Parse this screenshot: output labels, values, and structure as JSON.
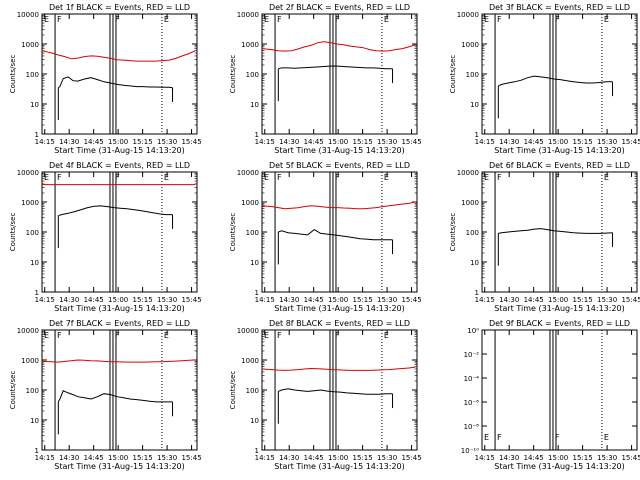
{
  "figure": {
    "colors": {
      "events": "#000000",
      "lld": "#dd0000",
      "background": "#ffffff"
    },
    "xlabel": "Start Time (31-Aug-15 14:13:20)",
    "ylabel": "Counts/sec",
    "time_ticks": [
      "14:15",
      "14:30",
      "14:45",
      "15:00",
      "15:15",
      "15:30",
      "15:45"
    ],
    "y_ticks": [
      "1",
      "10",
      "100",
      "1000",
      "10000"
    ],
    "y_ticks_small": [
      "10⁻¹⁰",
      "10⁻⁸",
      "10⁻⁶",
      "10⁻⁴",
      "10⁻²",
      "10⁰"
    ],
    "flag_labels": [
      "E",
      "F",
      "F",
      "E"
    ]
  },
  "chart_data": [
    {
      "type": "line",
      "title": "Det 1f BLACK = Events, RED = LLD",
      "xlabel": "Start Time (31-Aug-15 14:13:20)",
      "ylabel": "Counts/sec",
      "xlim_minutes": [
        0,
        95
      ],
      "ylim": [
        1,
        10000
      ],
      "yscale": "log",
      "series": [
        {
          "name": "Events",
          "color": "#000000",
          "x": [
            10,
            11,
            13,
            16,
            19,
            22,
            26,
            30,
            34,
            38,
            42,
            46,
            50,
            54,
            58,
            62,
            66,
            70,
            74,
            78,
            80
          ],
          "y": [
            35,
            38,
            70,
            80,
            60,
            58,
            68,
            75,
            65,
            55,
            50,
            45,
            42,
            40,
            38,
            38,
            37,
            37,
            36,
            36,
            35
          ]
        },
        {
          "name": "LLD",
          "color": "#dd0000",
          "x": [
            0,
            6,
            10,
            14,
            18,
            22,
            26,
            30,
            34,
            38,
            42,
            46,
            50,
            54,
            58,
            62,
            66,
            70,
            74,
            78,
            82,
            86,
            90,
            94
          ],
          "y": [
            600,
            500,
            430,
            380,
            320,
            340,
            380,
            400,
            390,
            360,
            330,
            300,
            290,
            280,
            270,
            270,
            270,
            270,
            280,
            290,
            330,
            400,
            480,
            600
          ]
        }
      ],
      "flags": [
        {
          "label": "E",
          "minute": 0,
          "line": "solid"
        },
        {
          "label": "F",
          "minute": 8,
          "line": "solid"
        },
        {
          "label": "F",
          "minute": 43.5,
          "line": "solid"
        },
        {
          "label": "E",
          "minute": 73.5,
          "line": "dotted"
        }
      ]
    },
    {
      "type": "line",
      "title": "Det 2f BLACK = Events, RED = LLD",
      "xlabel": "Start Time (31-Aug-15 14:13:20)",
      "ylabel": "Counts/sec",
      "xlim_minutes": [
        0,
        95
      ],
      "ylim": [
        1,
        10000
      ],
      "yscale": "log",
      "series": [
        {
          "name": "Events",
          "color": "#000000",
          "x": [
            10,
            12,
            16,
            20,
            24,
            28,
            32,
            36,
            40,
            44,
            48,
            52,
            56,
            60,
            64,
            68,
            72,
            76,
            80
          ],
          "y": [
            150,
            160,
            160,
            155,
            160,
            165,
            170,
            175,
            180,
            185,
            180,
            175,
            170,
            165,
            160,
            160,
            155,
            150,
            150
          ]
        },
        {
          "name": "LLD",
          "color": "#dd0000",
          "x": [
            0,
            6,
            10,
            14,
            18,
            22,
            26,
            30,
            34,
            38,
            42,
            46,
            50,
            54,
            58,
            62,
            66,
            70,
            74,
            78,
            82,
            86,
            90,
            94
          ],
          "y": [
            700,
            650,
            600,
            580,
            600,
            680,
            800,
            900,
            1100,
            1200,
            1100,
            1000,
            950,
            850,
            800,
            750,
            650,
            600,
            580,
            600,
            650,
            700,
            800,
            950
          ]
        }
      ],
      "flags": [
        {
          "label": "E",
          "minute": 0,
          "line": "solid"
        },
        {
          "label": "F",
          "minute": 8,
          "line": "solid"
        },
        {
          "label": "F",
          "minute": 43.5,
          "line": "solid"
        },
        {
          "label": "E",
          "minute": 73.5,
          "line": "dotted"
        }
      ]
    },
    {
      "type": "line",
      "title": "Det 3f BLACK = Events, RED = LLD",
      "xlabel": "Start Time (31-Aug-15 14:13:20)",
      "ylabel": "Counts/sec",
      "xlim_minutes": [
        0,
        95
      ],
      "ylim": [
        1,
        10000
      ],
      "yscale": "log",
      "series": [
        {
          "name": "Events",
          "color": "#000000",
          "x": [
            10,
            12,
            16,
            20,
            24,
            28,
            32,
            36,
            40,
            44,
            48,
            52,
            56,
            60,
            64,
            68,
            72,
            76,
            80
          ],
          "y": [
            40,
            45,
            50,
            55,
            62,
            75,
            85,
            80,
            75,
            68,
            65,
            60,
            55,
            52,
            50,
            50,
            52,
            55,
            55
          ]
        }
      ],
      "flags": [
        {
          "label": "E",
          "minute": 0,
          "line": "solid"
        },
        {
          "label": "F",
          "minute": 8,
          "line": "solid"
        },
        {
          "label": "F",
          "minute": 43.5,
          "line": "solid"
        },
        {
          "label": "E",
          "minute": 73.5,
          "line": "dotted"
        }
      ]
    },
    {
      "type": "line",
      "title": "Det 4f BLACK = Events, RED = LLD",
      "xlabel": "Start Time (31-Aug-15 14:13:20)",
      "ylabel": "Counts/sec",
      "xlim_minutes": [
        0,
        95
      ],
      "ylim": [
        1,
        10000
      ],
      "yscale": "log",
      "series": [
        {
          "name": "Events",
          "color": "#000000",
          "x": [
            10,
            12,
            16,
            20,
            24,
            28,
            32,
            36,
            40,
            44,
            48,
            52,
            56,
            60,
            64,
            68,
            72,
            76,
            80
          ],
          "y": [
            350,
            380,
            420,
            480,
            560,
            650,
            720,
            740,
            700,
            650,
            620,
            600,
            560,
            520,
            480,
            440,
            400,
            380,
            380
          ]
        },
        {
          "name": "LLD",
          "color": "#dd0000",
          "x": [
            0,
            10,
            20,
            30,
            40,
            50,
            60,
            70,
            80,
            90,
            94
          ],
          "y": [
            3800,
            3800,
            3800,
            3800,
            3800,
            3800,
            3800,
            3800,
            3800,
            3800,
            3800
          ]
        }
      ],
      "flags": [
        {
          "label": "E",
          "minute": 0,
          "line": "solid"
        },
        {
          "label": "F",
          "minute": 8,
          "line": "solid"
        },
        {
          "label": "F",
          "minute": 43.5,
          "line": "solid"
        },
        {
          "label": "E",
          "minute": 73.5,
          "line": "dotted"
        }
      ]
    },
    {
      "type": "line",
      "title": "Det 5f BLACK = Events, RED = LLD",
      "xlabel": "Start Time (31-Aug-15 14:13:20)",
      "ylabel": "Counts/sec",
      "xlim_minutes": [
        0,
        95
      ],
      "ylim": [
        1,
        10000
      ],
      "yscale": "log",
      "series": [
        {
          "name": "Events",
          "color": "#000000",
          "x": [
            10,
            12,
            16,
            20,
            24,
            28,
            32,
            36,
            40,
            44,
            48,
            52,
            56,
            60,
            64,
            68,
            72,
            76,
            80
          ],
          "y": [
            100,
            110,
            95,
            90,
            85,
            80,
            120,
            90,
            85,
            80,
            75,
            70,
            65,
            60,
            58,
            55,
            55,
            55,
            55
          ]
        },
        {
          "name": "LLD",
          "color": "#dd0000",
          "x": [
            0,
            6,
            10,
            14,
            18,
            22,
            26,
            30,
            34,
            38,
            42,
            46,
            50,
            54,
            58,
            62,
            66,
            70,
            74,
            78,
            82,
            86,
            90,
            94
          ],
          "y": [
            750,
            700,
            650,
            600,
            620,
            640,
            700,
            750,
            720,
            680,
            650,
            650,
            630,
            620,
            600,
            600,
            620,
            650,
            700,
            750,
            800,
            850,
            900,
            1000
          ]
        }
      ],
      "flags": [
        {
          "label": "E",
          "minute": 0,
          "line": "solid"
        },
        {
          "label": "F",
          "minute": 8,
          "line": "solid"
        },
        {
          "label": "F",
          "minute": 43.5,
          "line": "solid"
        },
        {
          "label": "E",
          "minute": 73.5,
          "line": "dotted"
        }
      ]
    },
    {
      "type": "line",
      "title": "Det 6f BLACK = Events, RED = LLD",
      "xlabel": "Start Time (31-Aug-15 14:13:20)",
      "ylabel": "Counts/sec",
      "xlim_minutes": [
        0,
        95
      ],
      "ylim": [
        1,
        10000
      ],
      "yscale": "log",
      "series": [
        {
          "name": "Events",
          "color": "#000000",
          "x": [
            10,
            12,
            16,
            20,
            24,
            28,
            32,
            36,
            40,
            44,
            48,
            52,
            56,
            60,
            64,
            68,
            72,
            76,
            80
          ],
          "y": [
            90,
            95,
            100,
            105,
            110,
            115,
            125,
            130,
            120,
            110,
            105,
            100,
            95,
            92,
            90,
            90,
            90,
            92,
            95
          ]
        }
      ],
      "flags": [
        {
          "label": "E",
          "minute": 0,
          "line": "solid"
        },
        {
          "label": "F",
          "minute": 8,
          "line": "solid"
        },
        {
          "label": "F",
          "minute": 43.5,
          "line": "solid"
        },
        {
          "label": "E",
          "minute": 73.5,
          "line": "dotted"
        }
      ]
    },
    {
      "type": "line",
      "title": "Det 7f BLACK = Events, RED = LLD",
      "xlabel": "Start Time (31-Aug-15 14:13:20)",
      "ylabel": "Counts/sec",
      "xlim_minutes": [
        0,
        95
      ],
      "ylim": [
        1,
        10000
      ],
      "yscale": "log",
      "series": [
        {
          "name": "Events",
          "color": "#000000",
          "x": [
            10,
            11,
            13,
            16,
            19,
            22,
            26,
            30,
            34,
            38,
            42,
            46,
            50,
            54,
            58,
            62,
            66,
            70,
            74,
            78,
            80
          ],
          "y": [
            40,
            50,
            95,
            80,
            70,
            60,
            55,
            50,
            60,
            75,
            70,
            60,
            55,
            50,
            48,
            45,
            42,
            40,
            40,
            40,
            40
          ]
        },
        {
          "name": "LLD",
          "color": "#dd0000",
          "x": [
            0,
            6,
            10,
            14,
            18,
            22,
            26,
            30,
            34,
            38,
            42,
            46,
            50,
            54,
            58,
            62,
            66,
            70,
            74,
            78,
            82,
            86,
            90,
            94
          ],
          "y": [
            900,
            880,
            850,
            900,
            950,
            1000,
            980,
            950,
            930,
            900,
            880,
            870,
            860,
            850,
            850,
            850,
            860,
            870,
            880,
            900,
            920,
            950,
            980,
            1000
          ]
        }
      ],
      "flags": [
        {
          "label": "E",
          "minute": 0,
          "line": "solid"
        },
        {
          "label": "F",
          "minute": 8,
          "line": "solid"
        },
        {
          "label": "F",
          "minute": 43.5,
          "line": "solid"
        },
        {
          "label": "E",
          "minute": 73.5,
          "line": "dotted"
        }
      ]
    },
    {
      "type": "line",
      "title": "Det 8f BLACK = Events, RED = LLD",
      "xlabel": "Start Time (31-Aug-15 14:13:20)",
      "ylabel": "Counts/sec",
      "xlim_minutes": [
        0,
        95
      ],
      "ylim": [
        1,
        10000
      ],
      "yscale": "log",
      "series": [
        {
          "name": "Events",
          "color": "#000000",
          "x": [
            10,
            12,
            16,
            20,
            24,
            28,
            32,
            36,
            40,
            44,
            48,
            52,
            56,
            60,
            64,
            68,
            72,
            76,
            80
          ],
          "y": [
            90,
            100,
            110,
            100,
            95,
            90,
            95,
            100,
            92,
            88,
            85,
            80,
            78,
            75,
            72,
            72,
            72,
            75,
            75
          ]
        },
        {
          "name": "LLD",
          "color": "#dd0000",
          "x": [
            0,
            6,
            10,
            14,
            18,
            22,
            26,
            30,
            34,
            38,
            42,
            46,
            50,
            54,
            58,
            62,
            66,
            70,
            74,
            78,
            82,
            86,
            90,
            94
          ],
          "y": [
            500,
            480,
            460,
            450,
            460,
            480,
            500,
            520,
            510,
            500,
            480,
            470,
            460,
            450,
            450,
            450,
            450,
            460,
            470,
            480,
            500,
            520,
            540,
            580
          ]
        }
      ],
      "flags": [
        {
          "label": "E",
          "minute": 0,
          "line": "solid"
        },
        {
          "label": "F",
          "minute": 8,
          "line": "solid"
        },
        {
          "label": "F",
          "minute": 43.5,
          "line": "solid"
        },
        {
          "label": "E",
          "minute": 73.5,
          "line": "dotted"
        }
      ]
    },
    {
      "type": "line",
      "title": "Det 9f BLACK = Events, RED = LLD",
      "xlabel": "Start Time (31-Aug-15 14:13:20)",
      "ylabel": "",
      "xlim_minutes": [
        0,
        95
      ],
      "ylim": [
        1e-10,
        1
      ],
      "yscale": "log",
      "series": [],
      "flags": [
        {
          "label": "E",
          "minute": 0,
          "line": "solid"
        },
        {
          "label": "F",
          "minute": 8,
          "line": "solid"
        },
        {
          "label": "F",
          "minute": 43.5,
          "line": "solid"
        },
        {
          "label": "E",
          "minute": 73.5,
          "line": "dotted"
        }
      ]
    }
  ]
}
